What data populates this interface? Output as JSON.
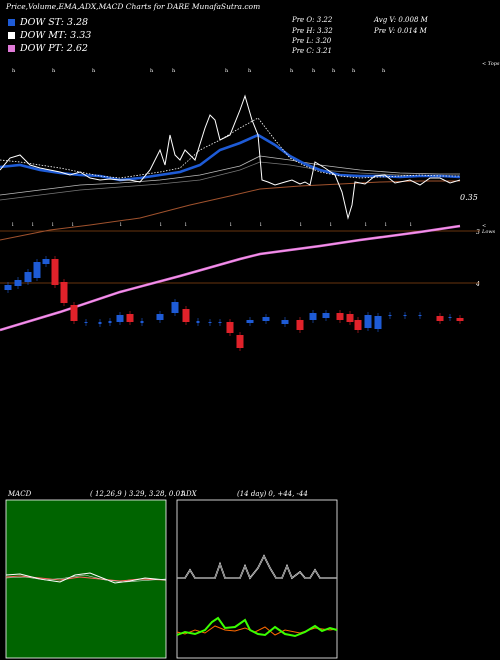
{
  "header": {
    "title": "Price,Volume,EMA,ADX,MACD Charts for DARE MunafaSutra.com",
    "dow": [
      {
        "label": "DOW ST: 3.28",
        "color": "#1e5bd6"
      },
      {
        "label": "DOW MT: 3.33",
        "color": "#ffffff"
      },
      {
        "label": "DOW PT: 2.62",
        "color": "#e07ad8"
      }
    ],
    "prev": [
      {
        "label": "Pre   O: 3.22"
      },
      {
        "label": "Pre   H: 3.32"
      },
      {
        "label": "Pre   L: 3.20"
      },
      {
        "label": "Pre   C: 3.21"
      }
    ],
    "avg": [
      {
        "label": "Avg V: 0.008  M"
      },
      {
        "label": "Pre   V: 0.014  M"
      }
    ]
  },
  "price_panel": {
    "right_labels": {
      "top": "< Tops",
      "price": "0.35",
      "lows": "< Lows",
      "mid1": "3",
      "mid2": "4"
    }
  },
  "macd_panel": {
    "label": "MACD",
    "params": "( 12,26,9 ) 3.29, 3.28, 0.01",
    "colors": {
      "background": "#006400",
      "macd": "#ffffff",
      "signal": "#ff6060"
    }
  },
  "adx_panel": {
    "label": "ADX",
    "params": "(14  day) 0, +44, -44",
    "colors": {
      "background": "#000000",
      "adx": "#ffffff",
      "plus_di": "#3aff00",
      "minus_di": "#ff6a00"
    }
  },
  "chart_data": [
    {
      "type": "line",
      "title": "Price,Volume,EMA,ADX,MACD Charts for DARE",
      "series": [
        {
          "name": "DOW ST",
          "values": [
            3.28
          ]
        },
        {
          "name": "DOW MT",
          "values": [
            3.33
          ]
        },
        {
          "name": "DOW PT",
          "values": [
            2.62
          ]
        }
      ]
    }
  ]
}
